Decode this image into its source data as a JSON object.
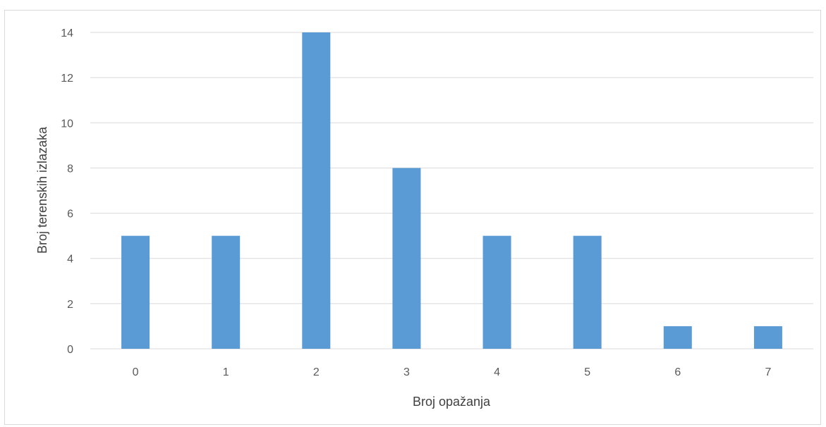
{
  "chart_data": {
    "type": "bar",
    "categories": [
      "0",
      "1",
      "2",
      "3",
      "4",
      "5",
      "6",
      "7"
    ],
    "values": [
      5,
      5,
      14,
      8,
      5,
      5,
      1,
      1
    ],
    "xlabel": "Broj opažanja",
    "ylabel": "Broj terenskih izlazaka",
    "ylim": [
      0,
      14
    ],
    "yticks": [
      "0",
      "2",
      "4",
      "6",
      "8",
      "10",
      "12",
      "14"
    ],
    "grid": true,
    "legend": "none",
    "bar_color": "#5b9bd5",
    "grid_color": "#d9d9d9"
  }
}
